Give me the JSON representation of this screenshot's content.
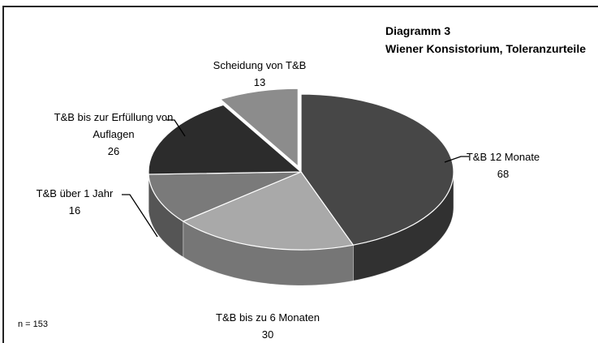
{
  "chart_data": {
    "type": "pie",
    "title": [
      "Diagramm 3",
      "Wiener Konsistorium, Toleranzurteile"
    ],
    "annotation": "n = 153",
    "categories": [
      "T&B 12 Monate",
      "T&B bis zu 6 Monaten",
      "T&B über 1 Jahr",
      "T&B bis zur Erfüllung von Auflagen",
      "Scheidung von T&B"
    ],
    "values": [
      68,
      30,
      16,
      26,
      13
    ],
    "colors": [
      "#474747",
      "#a9a9a9",
      "#7a7a7a",
      "#2c2c2c",
      "#8c8c8c"
    ],
    "exploded": [
      false,
      false,
      false,
      false,
      true
    ]
  }
}
